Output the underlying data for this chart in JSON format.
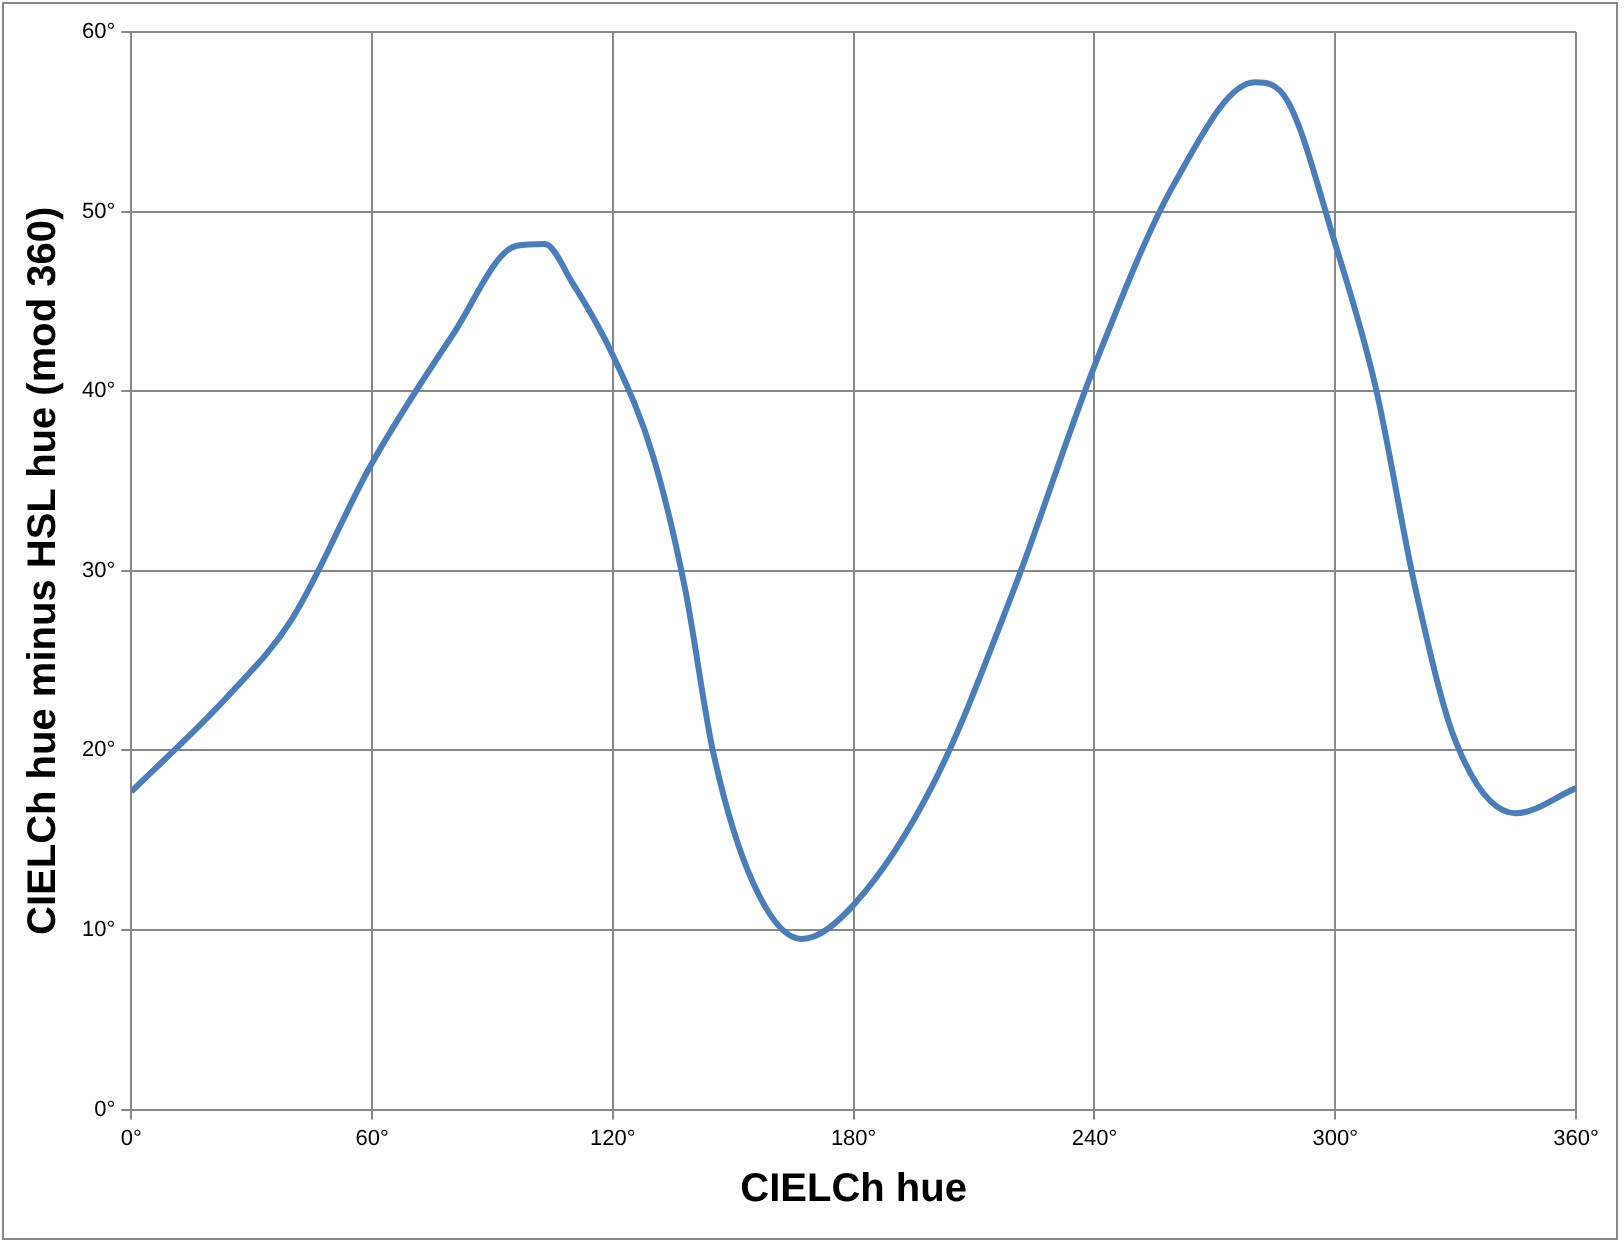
{
  "chart_data": {
    "type": "line",
    "xlabel": "CIELCh hue",
    "ylabel": "CIELCh hue minus HSL hue (mod 360)",
    "x": [
      0,
      24,
      40,
      60,
      80,
      96,
      103,
      110,
      120,
      130,
      138,
      145,
      155,
      167,
      180,
      200,
      220,
      240,
      260,
      280,
      288,
      300,
      310,
      320,
      330,
      345,
      360
    ],
    "series": [
      {
        "color": "#4a7ebb",
        "values": [
          17.7,
          23.0,
          27.3,
          36.0,
          43.1,
          48.1,
          48.2,
          46,
          42,
          36.4,
          29,
          19.9,
          12.6,
          9.5,
          11.4,
          18.2,
          29,
          41.4,
          51.6,
          57.2,
          56.2,
          48.2,
          40.3,
          29,
          20.5,
          16.5,
          17.9
        ]
      }
    ],
    "xlim": [
      0,
      360
    ],
    "xticks": [
      {
        "value": 0,
        "label": "0°"
      },
      {
        "value": 60,
        "label": "60°"
      },
      {
        "value": 120,
        "label": "120°"
      },
      {
        "value": 180,
        "label": "180°"
      },
      {
        "value": 240,
        "label": "240°"
      },
      {
        "value": 300,
        "label": "300°"
      },
      {
        "value": 360,
        "label": "360°"
      }
    ],
    "ylim": [
      0,
      60
    ],
    "yticks": [
      {
        "value": 0,
        "label": "0°"
      },
      {
        "value": 10,
        "label": "10°"
      },
      {
        "value": 20,
        "label": "20°"
      },
      {
        "value": 30,
        "label": "30°"
      },
      {
        "value": 40,
        "label": "40°"
      },
      {
        "value": 50,
        "label": "50°"
      },
      {
        "value": 60,
        "label": "60°"
      }
    ],
    "grid": true,
    "legend": false,
    "marker": "none",
    "line_style": "solid"
  }
}
